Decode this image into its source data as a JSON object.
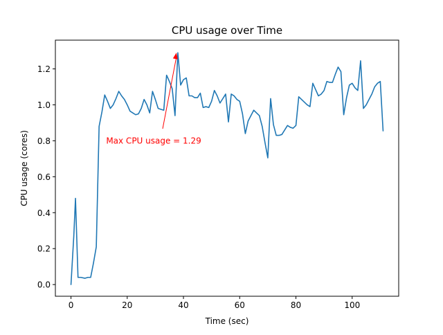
{
  "chart_data": {
    "type": "line",
    "title": "CPU usage over Time",
    "xlabel": "Time (sec)",
    "ylabel": "CPU usage (cores)",
    "xlim": [
      -5.55,
      116.55
    ],
    "ylim": [
      -0.065,
      1.36
    ],
    "xticks": [
      0,
      20,
      40,
      60,
      80,
      100
    ],
    "yticks": [
      0.0,
      0.2,
      0.4,
      0.6,
      0.8,
      1.0,
      1.2
    ],
    "ytick_labels": [
      "0.0",
      "0.2",
      "0.4",
      "0.6",
      "0.8",
      "1.0",
      "1.2"
    ],
    "line_color": "#1f77b4",
    "series": [
      {
        "x": [
          0,
          1,
          1.6,
          2.5,
          3.5,
          5,
          6,
          7,
          8,
          9,
          10,
          11,
          12,
          13,
          14,
          15,
          16,
          17,
          18,
          19,
          20,
          21,
          22,
          23,
          24,
          25,
          26,
          27,
          28,
          29,
          30,
          31,
          32,
          33,
          34,
          35,
          36,
          37,
          38,
          39,
          40,
          41,
          42,
          43,
          44,
          45,
          46,
          47,
          48,
          49,
          50,
          51,
          52,
          53,
          54,
          55,
          56,
          57,
          58,
          59,
          60,
          61,
          62,
          63,
          64,
          65,
          66,
          67,
          68,
          69,
          70,
          71,
          72,
          73,
          74,
          75,
          76,
          77,
          78,
          79,
          80,
          81,
          82,
          83,
          84,
          85,
          86,
          87,
          88,
          89,
          90,
          91,
          92,
          93,
          94,
          95,
          96,
          97,
          98,
          99,
          100,
          101,
          102,
          103,
          104,
          105,
          106,
          107,
          108,
          109,
          110,
          111
        ],
        "y": [
          0.0,
          0.27,
          0.48,
          0.04,
          0.04,
          0.035,
          0.04,
          0.04,
          0.12,
          0.21,
          0.88,
          0.96,
          1.055,
          1.02,
          0.98,
          1.0,
          1.035,
          1.075,
          1.05,
          1.03,
          1.0,
          0.965,
          0.955,
          0.945,
          0.95,
          0.98,
          1.03,
          1.0,
          0.955,
          1.075,
          1.03,
          0.98,
          0.975,
          0.97,
          1.165,
          1.13,
          1.09,
          0.94,
          1.29,
          1.11,
          1.14,
          1.15,
          1.05,
          1.05,
          1.04,
          1.04,
          1.065,
          0.985,
          0.99,
          0.985,
          1.02,
          1.08,
          1.05,
          1.01,
          1.035,
          1.06,
          0.905,
          1.06,
          1.05,
          1.03,
          1.02,
          0.95,
          0.84,
          0.91,
          0.94,
          0.97,
          0.955,
          0.94,
          0.88,
          0.79,
          0.705,
          1.035,
          0.89,
          0.83,
          0.83,
          0.835,
          0.86,
          0.885,
          0.875,
          0.87,
          0.885,
          1.045,
          1.03,
          1.015,
          1.0,
          0.99,
          1.12,
          1.085,
          1.05,
          1.06,
          1.08,
          1.13,
          1.125,
          1.125,
          1.17,
          1.21,
          1.185,
          0.945,
          1.04,
          1.11,
          1.12,
          1.095,
          1.08,
          1.245,
          0.98,
          1.0,
          1.03,
          1.06,
          1.1,
          1.12,
          1.13,
          0.855
        ]
      }
    ],
    "grid": false,
    "legend": "none",
    "annotation": {
      "text": "Max CPU usage = 1.29",
      "xy": [
        37.5,
        1.29
      ],
      "xytext": [
        12.5,
        0.8
      ],
      "color": "#ff0000"
    }
  }
}
